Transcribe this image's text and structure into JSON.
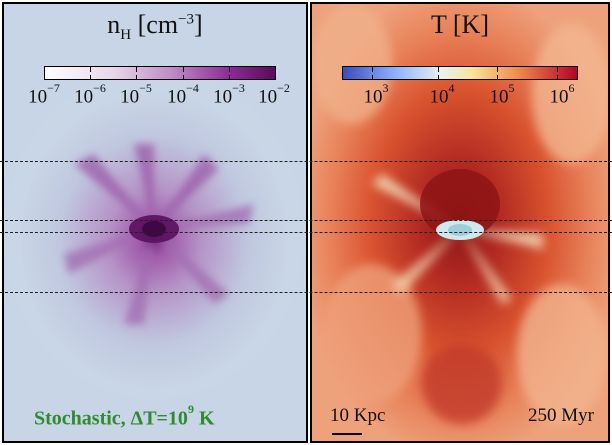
{
  "left_panel": {
    "colorbar_title_main": "n",
    "colorbar_title_sub": "H",
    "colorbar_title_unit": " [cm",
    "colorbar_title_unit_sup": "−3",
    "colorbar_title_unit_end": "]",
    "ticks": [
      {
        "base": "10",
        "exp": "−7"
      },
      {
        "base": "10",
        "exp": "−6"
      },
      {
        "base": "10",
        "exp": "−5"
      },
      {
        "base": "10",
        "exp": "−4"
      },
      {
        "base": "10",
        "exp": "−3"
      },
      {
        "base": "10",
        "exp": "−2"
      }
    ],
    "label_main": "Stochastic, ΔT=10",
    "label_sup": "9",
    "label_end": " K",
    "colors": {
      "background": "#c9d6e6",
      "gas": "#9a4f9e",
      "core": "#5a0f5e"
    }
  },
  "right_panel": {
    "colorbar_title": "T [K]",
    "ticks": [
      {
        "base": "10",
        "exp": "3"
      },
      {
        "base": "10",
        "exp": "4"
      },
      {
        "base": "10",
        "exp": "5"
      },
      {
        "base": "10",
        "exp": "6"
      }
    ],
    "scale_label": "10 Kpc",
    "time_label": "250 Myr",
    "colors": {
      "background": "#e06a3c",
      "hot": "#a01e1a",
      "cold": "#bfe0e8"
    }
  }
}
